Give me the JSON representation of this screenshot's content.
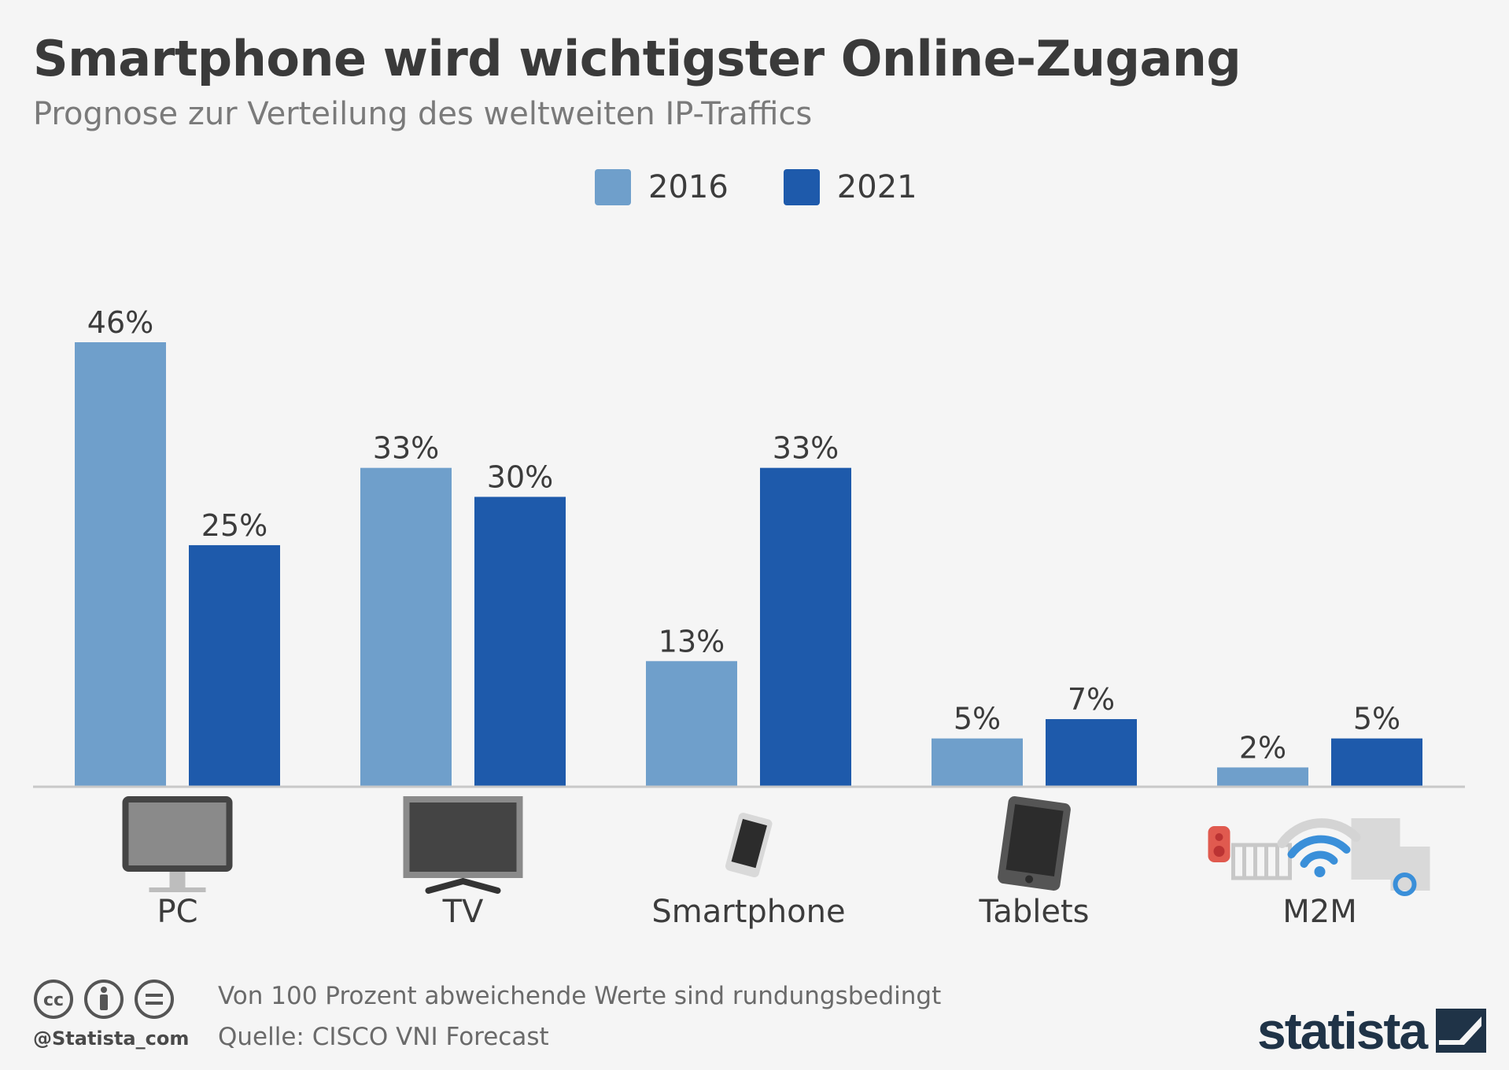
{
  "header": {
    "title": "Smartphone wird wichtigster Online-Zugang",
    "subtitle": "Prognose zur Verteilung des weltweiten IP-Traffics"
  },
  "colors": {
    "series_2016": "#6f9fcb",
    "series_2021": "#1e5aab",
    "background": "#f5f5f5",
    "baseline": "#c8c8c8"
  },
  "chart_data": {
    "type": "bar",
    "categories": [
      "PC",
      "TV",
      "Smartphone",
      "Tablets",
      "M2M"
    ],
    "category_icons": [
      "monitor-icon",
      "tv-icon",
      "smartphone-icon",
      "tablet-icon",
      "m2m-devices-icon"
    ],
    "series": [
      {
        "name": "2016",
        "values": [
          46,
          33,
          13,
          5,
          2
        ]
      },
      {
        "name": "2021",
        "values": [
          25,
          30,
          33,
          7,
          5
        ]
      }
    ],
    "value_labels": {
      "2016": [
        "46%",
        "33%",
        "13%",
        "5%",
        "2%"
      ],
      "2021": [
        "25%",
        "30%",
        "33%",
        "7%",
        "5%"
      ]
    },
    "unit": "%",
    "title": "Smartphone wird wichtigster Online-Zugang",
    "subtitle": "Prognose zur Verteilung des weltweiten IP-Traffics",
    "xlabel": "",
    "ylabel": "",
    "ylim": [
      0,
      46
    ],
    "grid": false,
    "legend": "top-center"
  },
  "footer": {
    "note": "Von 100 Prozent abweichende Werte sind rundungsbedingt",
    "source": "Quelle: CISCO VNI Forecast",
    "handle": "@Statista_com",
    "license_icons": [
      "cc-icon",
      "by-icon",
      "nd-icon"
    ],
    "logo": "statista"
  }
}
